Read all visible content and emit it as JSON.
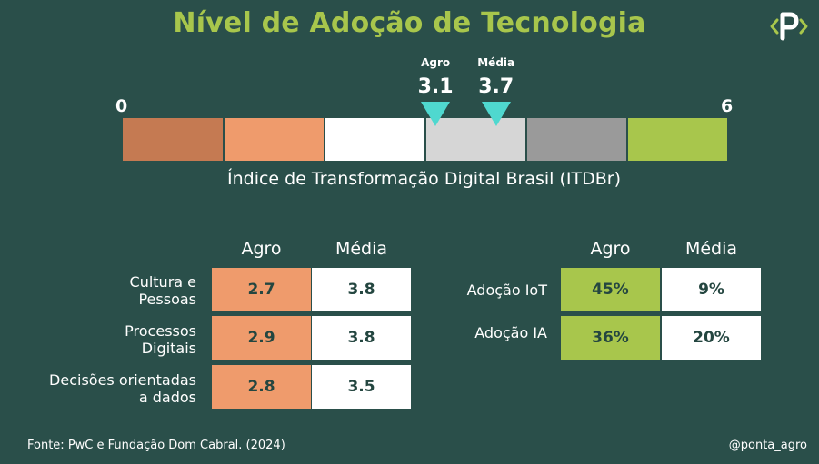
{
  "title": "Nível de Adoção de Tecnologia",
  "colors": {
    "background": "#2a4f4a",
    "title": "#a8c64c",
    "marker": "#4fd8cf",
    "agro_cell": "#ef9b6c",
    "media_cell": "#ffffff",
    "adoption_agro_cell": "#a8c64c"
  },
  "logo_icon": "p-code-logo-icon",
  "chart_data": [
    {
      "type": "bar",
      "title": "",
      "xlabel": "Índice de Transformação Digital Brasil (ITDBr)",
      "xlim": [
        0,
        6
      ],
      "scale_min_label": "0",
      "scale_max_label": "6",
      "bands": [
        {
          "from": 0,
          "to": 1,
          "color": "#c57a52"
        },
        {
          "from": 1,
          "to": 2,
          "color": "#ef9b6c"
        },
        {
          "from": 2,
          "to": 3,
          "color": "#ffffff"
        },
        {
          "from": 3,
          "to": 4,
          "color": "#d6d6d6"
        },
        {
          "from": 4,
          "to": 5,
          "color": "#9a9a9a"
        },
        {
          "from": 5,
          "to": 6,
          "color": "#a8c64c"
        }
      ],
      "markers": [
        {
          "name": "Agro",
          "value": 3.1,
          "value_label": "3.1"
        },
        {
          "name": "Média",
          "value": 3.7,
          "value_label": "3.7"
        }
      ]
    },
    {
      "type": "table",
      "columns": [
        "Agro",
        "Média"
      ],
      "rows": [
        {
          "label_lines": [
            "Cultura e",
            "Pessoas"
          ],
          "values": [
            "2.7",
            "3.8"
          ]
        },
        {
          "label_lines": [
            "Processos",
            "Digitais"
          ],
          "values": [
            "2.9",
            "3.8"
          ]
        },
        {
          "label_lines": [
            "Decisões orientadas",
            "a dados"
          ],
          "values": [
            "2.8",
            "3.5"
          ]
        }
      ]
    },
    {
      "type": "table",
      "columns": [
        "Agro",
        "Média"
      ],
      "rows": [
        {
          "label": "Adoção IoT",
          "values": [
            "45%",
            "9%"
          ]
        },
        {
          "label": "Adoção IA",
          "values": [
            "36%",
            "20%"
          ]
        }
      ]
    }
  ],
  "footer": {
    "source": "Fonte: PwC e Fundação Dom Cabral. (2024)",
    "handle": "@ponta_agro"
  }
}
